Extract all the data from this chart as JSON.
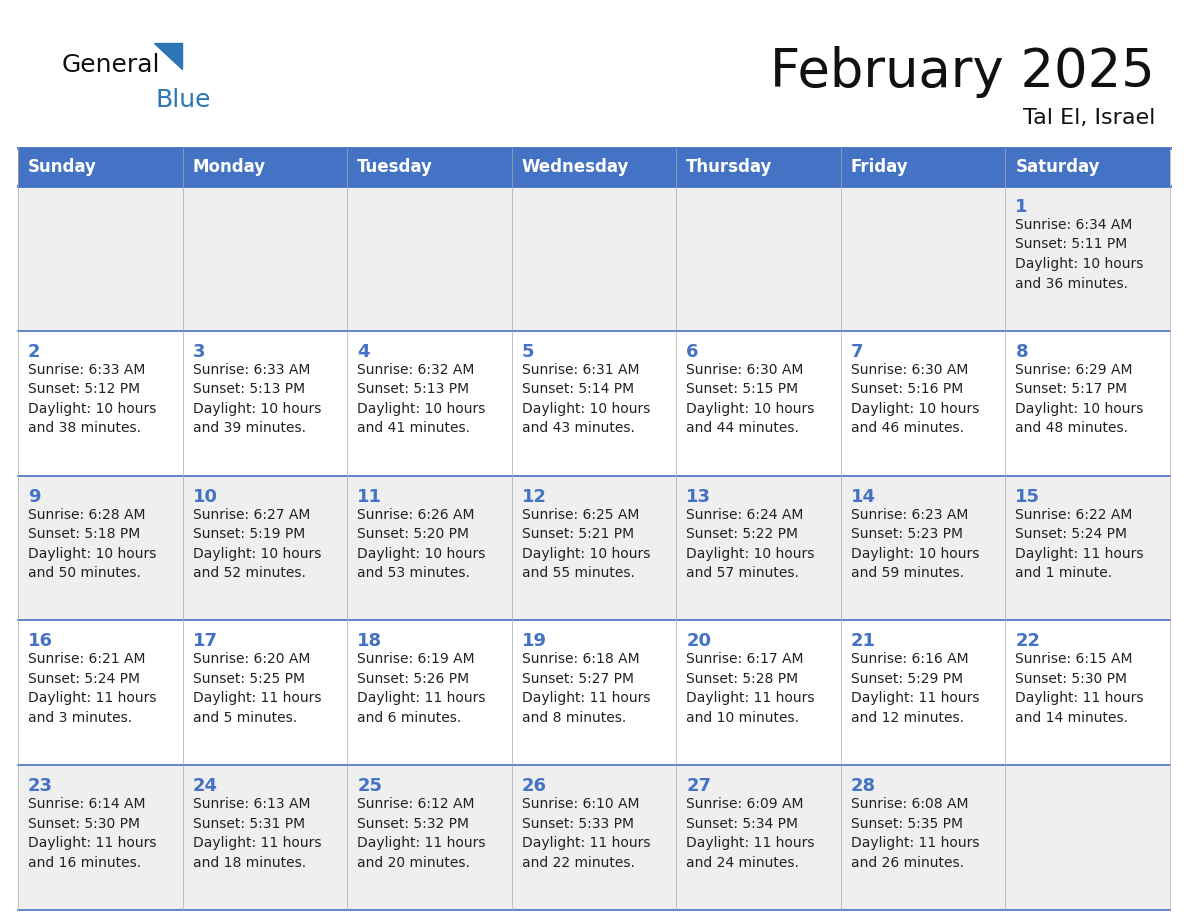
{
  "title": "February 2025",
  "subtitle": "Tal El, Israel",
  "header_bg": "#4472C4",
  "header_text": "#FFFFFF",
  "day_names": [
    "Sunday",
    "Monday",
    "Tuesday",
    "Wednesday",
    "Thursday",
    "Friday",
    "Saturday"
  ],
  "row_bg_odd": "#EFEFEF",
  "row_bg_even": "#FFFFFF",
  "cell_text_color": "#222222",
  "day_num_color": "#4472C4",
  "border_color": "#4472C4",
  "logo_general_color": "#111111",
  "logo_blue_color": "#2E75B6",
  "logo_triangle_color": "#2E75B6",
  "calendar_data": [
    [
      {
        "day": "",
        "sunrise": "",
        "sunset": "",
        "daylight": ""
      },
      {
        "day": "",
        "sunrise": "",
        "sunset": "",
        "daylight": ""
      },
      {
        "day": "",
        "sunrise": "",
        "sunset": "",
        "daylight": ""
      },
      {
        "day": "",
        "sunrise": "",
        "sunset": "",
        "daylight": ""
      },
      {
        "day": "",
        "sunrise": "",
        "sunset": "",
        "daylight": ""
      },
      {
        "day": "",
        "sunrise": "",
        "sunset": "",
        "daylight": ""
      },
      {
        "day": "1",
        "sunrise": "6:34 AM",
        "sunset": "5:11 PM",
        "daylight": "10 hours and 36 minutes."
      }
    ],
    [
      {
        "day": "2",
        "sunrise": "6:33 AM",
        "sunset": "5:12 PM",
        "daylight": "10 hours and 38 minutes."
      },
      {
        "day": "3",
        "sunrise": "6:33 AM",
        "sunset": "5:13 PM",
        "daylight": "10 hours and 39 minutes."
      },
      {
        "day": "4",
        "sunrise": "6:32 AM",
        "sunset": "5:13 PM",
        "daylight": "10 hours and 41 minutes."
      },
      {
        "day": "5",
        "sunrise": "6:31 AM",
        "sunset": "5:14 PM",
        "daylight": "10 hours and 43 minutes."
      },
      {
        "day": "6",
        "sunrise": "6:30 AM",
        "sunset": "5:15 PM",
        "daylight": "10 hours and 44 minutes."
      },
      {
        "day": "7",
        "sunrise": "6:30 AM",
        "sunset": "5:16 PM",
        "daylight": "10 hours and 46 minutes."
      },
      {
        "day": "8",
        "sunrise": "6:29 AM",
        "sunset": "5:17 PM",
        "daylight": "10 hours and 48 minutes."
      }
    ],
    [
      {
        "day": "9",
        "sunrise": "6:28 AM",
        "sunset": "5:18 PM",
        "daylight": "10 hours and 50 minutes."
      },
      {
        "day": "10",
        "sunrise": "6:27 AM",
        "sunset": "5:19 PM",
        "daylight": "10 hours and 52 minutes."
      },
      {
        "day": "11",
        "sunrise": "6:26 AM",
        "sunset": "5:20 PM",
        "daylight": "10 hours and 53 minutes."
      },
      {
        "day": "12",
        "sunrise": "6:25 AM",
        "sunset": "5:21 PM",
        "daylight": "10 hours and 55 minutes."
      },
      {
        "day": "13",
        "sunrise": "6:24 AM",
        "sunset": "5:22 PM",
        "daylight": "10 hours and 57 minutes."
      },
      {
        "day": "14",
        "sunrise": "6:23 AM",
        "sunset": "5:23 PM",
        "daylight": "10 hours and 59 minutes."
      },
      {
        "day": "15",
        "sunrise": "6:22 AM",
        "sunset": "5:24 PM",
        "daylight": "11 hours and 1 minute."
      }
    ],
    [
      {
        "day": "16",
        "sunrise": "6:21 AM",
        "sunset": "5:24 PM",
        "daylight": "11 hours and 3 minutes."
      },
      {
        "day": "17",
        "sunrise": "6:20 AM",
        "sunset": "5:25 PM",
        "daylight": "11 hours and 5 minutes."
      },
      {
        "day": "18",
        "sunrise": "6:19 AM",
        "sunset": "5:26 PM",
        "daylight": "11 hours and 6 minutes."
      },
      {
        "day": "19",
        "sunrise": "6:18 AM",
        "sunset": "5:27 PM",
        "daylight": "11 hours and 8 minutes."
      },
      {
        "day": "20",
        "sunrise": "6:17 AM",
        "sunset": "5:28 PM",
        "daylight": "11 hours and 10 minutes."
      },
      {
        "day": "21",
        "sunrise": "6:16 AM",
        "sunset": "5:29 PM",
        "daylight": "11 hours and 12 minutes."
      },
      {
        "day": "22",
        "sunrise": "6:15 AM",
        "sunset": "5:30 PM",
        "daylight": "11 hours and 14 minutes."
      }
    ],
    [
      {
        "day": "23",
        "sunrise": "6:14 AM",
        "sunset": "5:30 PM",
        "daylight": "11 hours and 16 minutes."
      },
      {
        "day": "24",
        "sunrise": "6:13 AM",
        "sunset": "5:31 PM",
        "daylight": "11 hours and 18 minutes."
      },
      {
        "day": "25",
        "sunrise": "6:12 AM",
        "sunset": "5:32 PM",
        "daylight": "11 hours and 20 minutes."
      },
      {
        "day": "26",
        "sunrise": "6:10 AM",
        "sunset": "5:33 PM",
        "daylight": "11 hours and 22 minutes."
      },
      {
        "day": "27",
        "sunrise": "6:09 AM",
        "sunset": "5:34 PM",
        "daylight": "11 hours and 24 minutes."
      },
      {
        "day": "28",
        "sunrise": "6:08 AM",
        "sunset": "5:35 PM",
        "daylight": "11 hours and 26 minutes."
      },
      {
        "day": "",
        "sunrise": "",
        "sunset": "",
        "daylight": ""
      }
    ]
  ]
}
